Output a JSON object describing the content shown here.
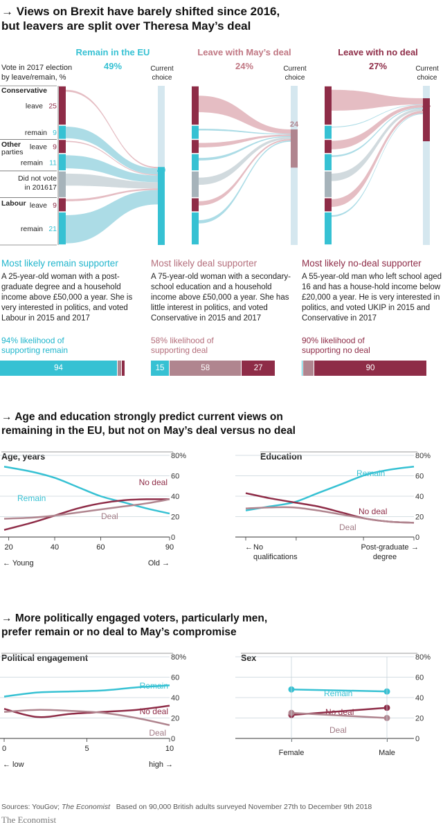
{
  "colors": {
    "remain": "#36c1d3",
    "deal": "#b0858f",
    "nodeal": "#8e2c47",
    "pinkFlow": "#e0b1b8",
    "blueFlow": "#9dd6e2",
    "grey": "#a6b3ba",
    "bar": "#d5e7ef"
  },
  "title": {
    "arrow": "→",
    "line1": "Views on Brexit have barely shifted since 2016,",
    "line2": "but leavers are split over Theresa May’s deal"
  },
  "sankey": {
    "left_label_line1": "Vote in 2017 election",
    "left_label_line2": "by leave/remain, %",
    "current_line1": "Current",
    "current_line2": "choice",
    "panels": [
      {
        "title": "Remain in the EU",
        "pct": "49%",
        "end": "49"
      },
      {
        "title": "Leave with May’s deal",
        "pct": "24%",
        "end": "24"
      },
      {
        "title": "Leave with no deal",
        "pct": "27%",
        "end": "27"
      }
    ],
    "groups": [
      {
        "label": "Conservative"
      },
      {
        "label": "Other"
      },
      {
        "label": "parties"
      },
      {
        "label": "Did not vote"
      },
      {
        "label": "in 2016"
      },
      {
        "label": "Labour"
      }
    ],
    "rows": [
      {
        "label": "leave",
        "value": "25"
      },
      {
        "label": "remain",
        "value": "9"
      },
      {
        "label": "leave",
        "value": "9"
      },
      {
        "label": "remain",
        "value": "11"
      },
      {
        "label": "",
        "value": "17"
      },
      {
        "label": "leave",
        "value": "9"
      },
      {
        "label": "remain",
        "value": "21"
      }
    ]
  },
  "supporters": [
    {
      "heading": "Most likely remain supporter",
      "desc": [
        "A 25-year-old woman with a post-",
        "graduate degree and a household",
        "income above £50,000 a year. She is",
        "very interested in politics, and voted",
        "Labour in 2015 and 2017"
      ],
      "likelihood": [
        "94% likelihood of",
        "supporting remain"
      ],
      "bar": [
        {
          "key": "remain",
          "value": 94,
          "label": "94"
        },
        {
          "key": "deal",
          "value": 3,
          "label": ""
        },
        {
          "key": "nodeal",
          "value": 3,
          "label": ""
        }
      ]
    },
    {
      "heading": "Most likely deal supporter",
      "desc": [
        "A 75-year-old woman with a secondary-",
        "school education and a household",
        "income above £50,000 a year. She has",
        "little interest in politics, and voted",
        "Conservative in 2015 and 2017"
      ],
      "likelihood": [
        "58% likelihood of",
        "supporting deal"
      ],
      "bar": [
        {
          "key": "remain",
          "value": 15,
          "label": "15"
        },
        {
          "key": "deal",
          "value": 58,
          "label": "58"
        },
        {
          "key": "nodeal",
          "value": 27,
          "label": "27"
        }
      ]
    },
    {
      "heading": "Most likely no-deal supporter",
      "desc": [
        "A 55-year-old man who left school aged",
        "16 and has a house-hold income below",
        "£20,000 a year. He is very interested in",
        "politics, and voted UKIP in 2015 and",
        "Conservative in 2017"
      ],
      "likelihood": [
        "90% likelihood of",
        "supporting no deal"
      ],
      "bar": [
        {
          "key": "remain",
          "value": 1,
          "label": ""
        },
        {
          "key": "deal",
          "value": 9,
          "label": ""
        },
        {
          "key": "nodeal",
          "value": 90,
          "label": "90"
        }
      ]
    }
  ],
  "section2": {
    "arrow": "→",
    "line1": "Age and education strongly predict current views on",
    "line2": "remaining in the EU, but not on May’s deal versus no deal"
  },
  "section3": {
    "arrow": "→",
    "line1": "More politically engaged voters, particularly men,",
    "line2": "prefer remain or no deal to May’s compromise"
  },
  "chart_data": [
    {
      "type": "line",
      "title": "Age, years",
      "ylim": [
        0,
        80
      ],
      "yticks": [
        "0",
        "20",
        "40",
        "60",
        "80%"
      ],
      "xticks": [
        "20",
        "40",
        "60",
        "90"
      ],
      "xnotes": [
        "← Young",
        "Old →"
      ],
      "x": [
        18,
        30,
        40,
        50,
        60,
        70,
        80,
        90
      ],
      "series": [
        {
          "name": "Remain",
          "key": "remain",
          "values": [
            69,
            64,
            58,
            49,
            40,
            34,
            28,
            23
          ]
        },
        {
          "name": "No deal",
          "key": "nodeal",
          "values": [
            7,
            14,
            21,
            28,
            33,
            36,
            37,
            37
          ]
        },
        {
          "name": "Deal",
          "key": "deal",
          "values": [
            18,
            19,
            21,
            24,
            27,
            30,
            33,
            37
          ]
        }
      ]
    },
    {
      "type": "line",
      "title": "Education",
      "ylim": [
        0,
        80
      ],
      "yticks": [
        "0",
        "20",
        "40",
        "60",
        "80%"
      ],
      "xticks": [],
      "xnotes": [
        "←",
        "No",
        "qualifications",
        "Post-graduate",
        "degree",
        "→"
      ],
      "x": [
        0,
        1,
        2,
        3,
        4,
        5,
        6,
        7
      ],
      "series": [
        {
          "name": "Remain",
          "key": "remain",
          "values": [
            26,
            30,
            34,
            43,
            52,
            61,
            66,
            69
          ]
        },
        {
          "name": "No deal",
          "key": "nodeal",
          "values": [
            43,
            38,
            34,
            30,
            24,
            18,
            15,
            14
          ]
        },
        {
          "name": "Deal",
          "key": "deal",
          "values": [
            28,
            29,
            29,
            26,
            22,
            18,
            15,
            14
          ]
        }
      ]
    },
    {
      "type": "line",
      "title": "Political engagement",
      "ylim": [
        0,
        80
      ],
      "yticks": [
        "0",
        "20",
        "40",
        "60",
        "80%"
      ],
      "xticks": [
        "0",
        "5",
        "10"
      ],
      "xnotes": [
        "← low",
        "high →"
      ],
      "x": [
        0,
        2,
        4,
        6,
        8,
        10
      ],
      "series": [
        {
          "name": "Remain",
          "key": "remain",
          "values": [
            41,
            45,
            46,
            47,
            50,
            52
          ]
        },
        {
          "name": "No deal",
          "key": "nodeal",
          "values": [
            29,
            21,
            24,
            26,
            28,
            32
          ]
        },
        {
          "name": "Deal",
          "key": "deal",
          "values": [
            26,
            28,
            27,
            25,
            20,
            13
          ]
        }
      ]
    },
    {
      "type": "dot",
      "title": "Sex",
      "ylim": [
        0,
        80
      ],
      "yticks": [
        "0",
        "20",
        "40",
        "60",
        "80%"
      ],
      "categories": [
        "Female",
        "Male"
      ],
      "series": [
        {
          "name": "Remain",
          "key": "remain",
          "values": [
            48,
            46
          ]
        },
        {
          "name": "No deal",
          "key": "nodeal",
          "values": [
            23,
            30
          ]
        },
        {
          "name": "Deal",
          "key": "deal",
          "values": [
            25,
            20
          ]
        }
      ]
    }
  ],
  "footer": {
    "sources": "Sources: YouGov; ",
    "economist": "The Economist",
    "note": "Based on 90,000 British adults surveyed November 27th to December 9th 2018",
    "logo": "The Economist"
  }
}
